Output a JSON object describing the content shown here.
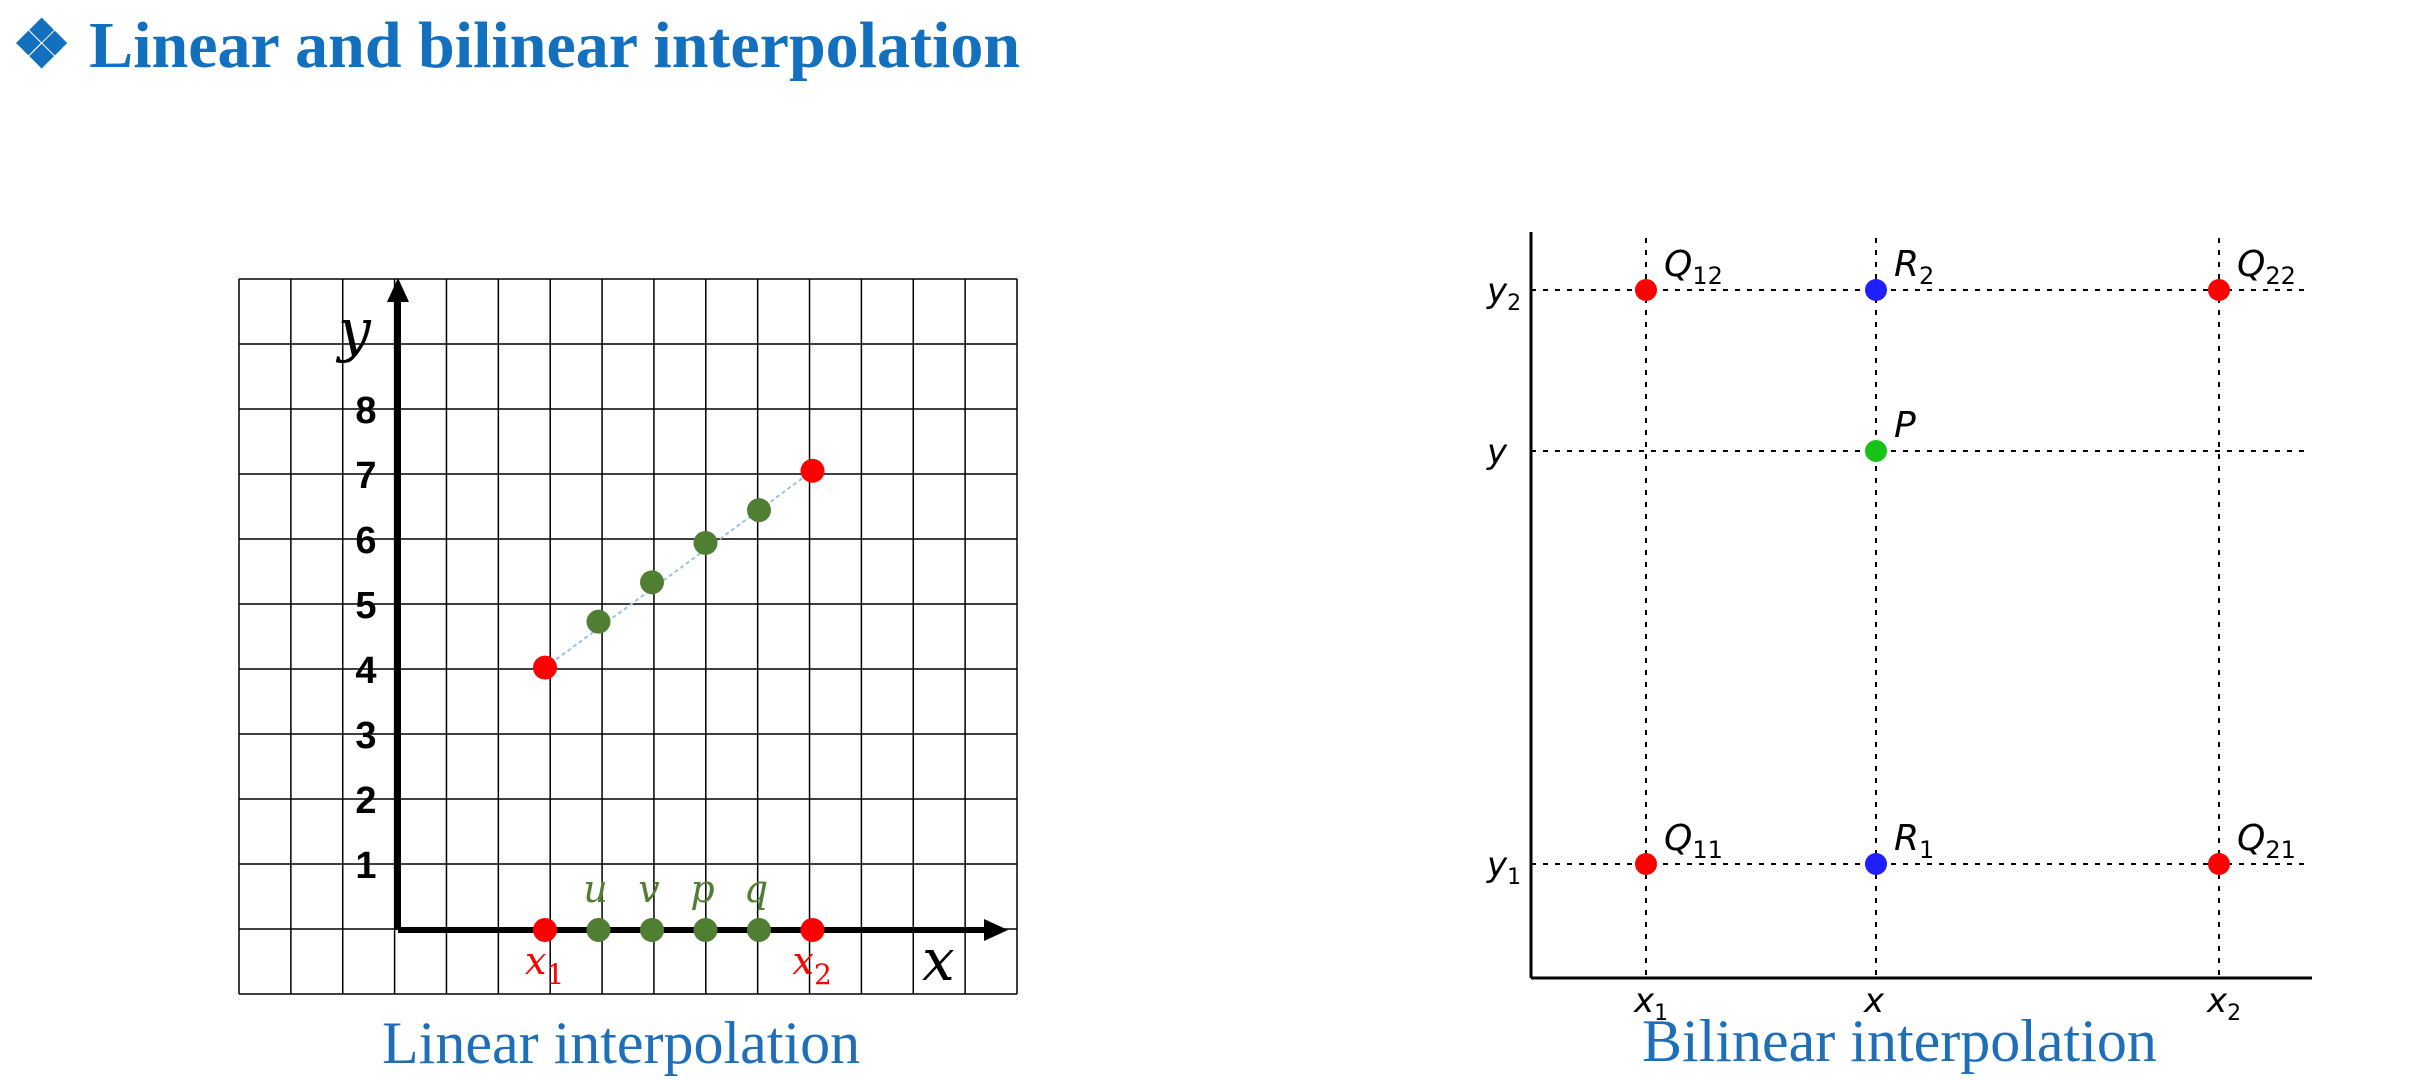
{
  "title": {
    "bullet": "❖",
    "text": "Linear and bilinear interpolation"
  },
  "linear": {
    "caption": "Linear interpolation",
    "x_axis_label": "x",
    "y_axis_label": "y",
    "y_ticks": [
      "1",
      "2",
      "3",
      "4",
      "5",
      "6",
      "7",
      "8"
    ],
    "endpoints": [
      {
        "name": "x",
        "sub": "1",
        "x": 3,
        "y": 4
      },
      {
        "name": "x",
        "sub": "2",
        "x": 8,
        "y": 7
      }
    ],
    "interpolated": [
      {
        "name": "u",
        "x": 4,
        "y": 4.7
      },
      {
        "name": "v",
        "x": 5,
        "y": 5.3
      },
      {
        "name": "p",
        "x": 6,
        "y": 5.9
      },
      {
        "name": "q",
        "x": 7,
        "y": 6.4
      }
    ],
    "colors": {
      "endpoint": "#ff0000",
      "interp": "#507e32",
      "line": "#9cc3e5"
    }
  },
  "bilinear": {
    "caption": "Bilinear interpolation",
    "x_ticks": [
      {
        "name": "x",
        "sub": "1"
      },
      {
        "name": "x",
        "sub": ""
      },
      {
        "name": "x",
        "sub": "2"
      }
    ],
    "y_ticks": [
      {
        "name": "y",
        "sub": "2"
      },
      {
        "name": "y",
        "sub": ""
      },
      {
        "name": "y",
        "sub": "1"
      }
    ],
    "points": [
      {
        "label": "Q",
        "sub": "12",
        "color": "#ff0000"
      },
      {
        "label": "R",
        "sub": "2",
        "color": "#1f1fff"
      },
      {
        "label": "Q",
        "sub": "22",
        "color": "#ff0000"
      },
      {
        "label": "P",
        "sub": "",
        "color": "#19c219"
      },
      {
        "label": "Q",
        "sub": "11",
        "color": "#ff0000"
      },
      {
        "label": "R",
        "sub": "1",
        "color": "#1f1fff"
      },
      {
        "label": "Q",
        "sub": "21",
        "color": "#ff0000"
      }
    ]
  }
}
